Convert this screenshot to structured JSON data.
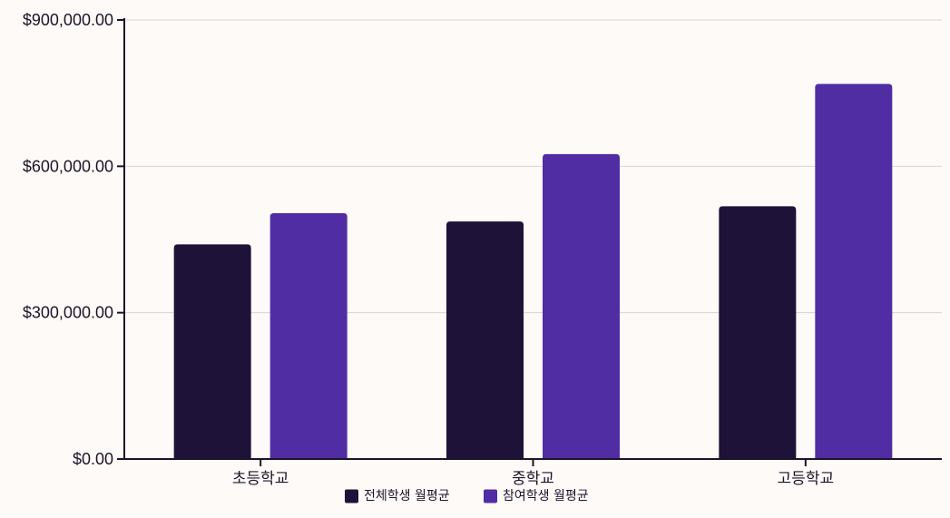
{
  "chart_data": {
    "type": "bar",
    "title": "",
    "xlabel": "",
    "ylabel": "",
    "categories": [
      "초등학교",
      "중학교",
      "고등학교"
    ],
    "series": [
      {
        "name": "전체학생 월평균",
        "color": "#1e1238",
        "values": [
          440000,
          487000,
          518000
        ]
      },
      {
        "name": "참여학생 월평균",
        "color": "#512da4",
        "values": [
          504000,
          625000,
          769000
        ]
      }
    ],
    "ylim": [
      0,
      900000
    ],
    "yticks": [
      0,
      300000,
      600000,
      900000
    ],
    "ytick_labels": [
      "$0.00",
      "$300,000.00",
      "$600,000.00",
      "$900,000.00"
    ],
    "grid": true,
    "legend_position": "bottom-center",
    "colors": {
      "background": "#fefaf7",
      "axis": "#1c1429",
      "grid": "#d9d4d4",
      "text": "#1c1429"
    }
  }
}
